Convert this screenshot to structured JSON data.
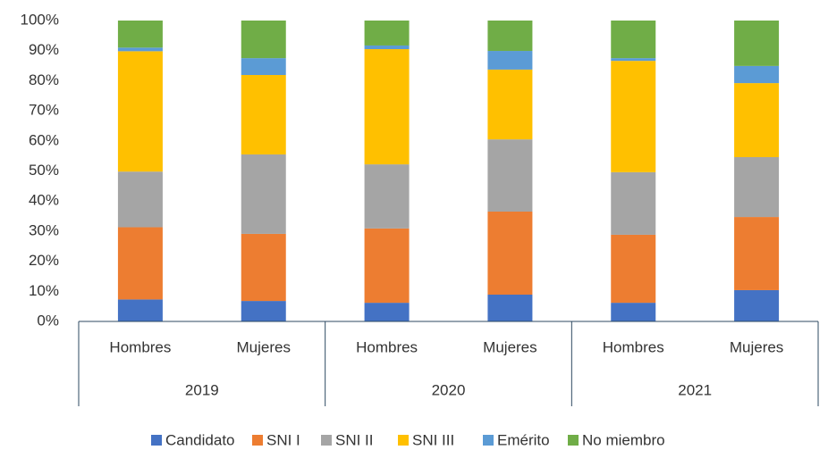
{
  "chart_data": {
    "type": "stacked_bar_100",
    "categories": [
      "Hombres",
      "Mujeres",
      "Hombres",
      "Mujeres",
      "Hombres",
      "Mujeres"
    ],
    "groups": [
      "2019",
      "2020",
      "2021"
    ],
    "series": [
      {
        "name": "Candidato",
        "color": "#4472c4",
        "values": [
          7.3,
          6.8,
          6.2,
          8.9,
          6.2,
          10.4
        ]
      },
      {
        "name": "SNI I",
        "color": "#ed7d31",
        "values": [
          24,
          22.3,
          24.7,
          27.6,
          22.6,
          24.3
        ]
      },
      {
        "name": "SNI II",
        "color": "#a5a5a5",
        "values": [
          18.5,
          26.4,
          21.3,
          24,
          20.8,
          19.9
        ]
      },
      {
        "name": "SNI III",
        "color": "#ffc000",
        "values": [
          40,
          26.4,
          38.3,
          23.2,
          37,
          24.6
        ]
      },
      {
        "name": "Emérito",
        "color": "#5b9bd5",
        "values": [
          1.2,
          5.6,
          1.2,
          6.2,
          0.9,
          5.7
        ]
      },
      {
        "name": "No miembro",
        "color": "#70ad47",
        "values": [
          9,
          12.5,
          8.3,
          10.1,
          12.5,
          15.1
        ]
      }
    ],
    "ylim": [
      0,
      100
    ],
    "yticks": [
      {
        "value": 0,
        "label": "0%"
      },
      {
        "value": 10,
        "label": "10%"
      },
      {
        "value": 20,
        "label": "20%"
      },
      {
        "value": 30,
        "label": "30%"
      },
      {
        "value": 40,
        "label": "40%"
      },
      {
        "value": 50,
        "label": "50%"
      },
      {
        "value": 60,
        "label": "60%"
      },
      {
        "value": 70,
        "label": "70%"
      },
      {
        "value": 80,
        "label": "80%"
      },
      {
        "value": 90,
        "label": "90%"
      },
      {
        "value": 100,
        "label": "100%"
      }
    ],
    "legend": "bottom"
  }
}
